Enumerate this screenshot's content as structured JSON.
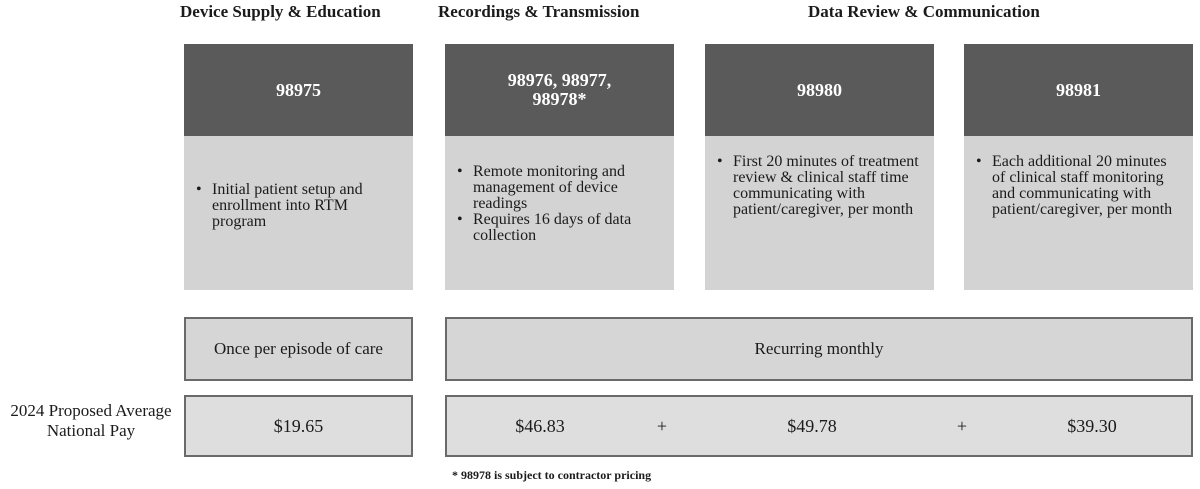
{
  "headers": {
    "device_supply": "Device Supply & Education",
    "recordings": "Recordings & Transmission",
    "data_review": "Data Review & Communication"
  },
  "codes": [
    {
      "code": "98975",
      "bullets": [
        "Initial patient setup and enrollment into RTM program"
      ]
    },
    {
      "code": "98976, 98977,\n98978*",
      "bullets": [
        "Remote monitoring and management of device readings",
        "Requires 16 days of data collection"
      ]
    },
    {
      "code": "98980",
      "bullets": [
        "First 20 minutes of treatment review & clinical staff time communicating with patient/caregiver, per month"
      ]
    },
    {
      "code": "98981",
      "bullets": [
        "Each additional 20 minutes of clinical staff monitoring and communicating with patient/caregiver, per month"
      ]
    }
  ],
  "frequency": {
    "once": "Once per episode of care",
    "recurring": "Recurring monthly"
  },
  "payment": {
    "label": "2024 Proposed Average National Pay",
    "setup": "$19.65",
    "recordings": "$46.83",
    "review_first": "$49.78",
    "review_additional": "$39.30",
    "plus": "+"
  },
  "footnote": "* 98978 is subject to contractor pricing"
}
